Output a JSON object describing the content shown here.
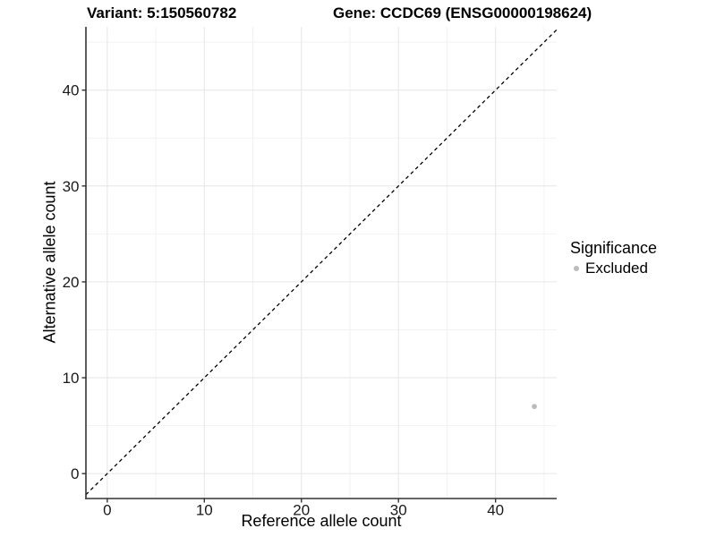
{
  "chart_data": {
    "type": "scatter",
    "title_left": "Variant: 5:150560782",
    "title_right": "Gene: CCDC69 (ENSG00000198624)",
    "xlabel": "Reference allele count",
    "ylabel": "Alternative allele count",
    "x_ticks": [
      0,
      10,
      20,
      30,
      40
    ],
    "y_ticks": [
      0,
      10,
      20,
      30,
      40
    ],
    "x_minor_ticks": [
      5,
      15,
      25,
      35,
      45
    ],
    "y_minor_ticks": [
      5,
      15,
      25,
      35,
      45
    ],
    "xlim": [
      -2.2,
      46.3
    ],
    "ylim": [
      -2.6,
      46.6
    ],
    "grid": "major and minor, light gray, on white panel",
    "identity_line": {
      "equation": "y = x",
      "style": "dashed",
      "color": "#000000"
    },
    "series": [
      {
        "name": "Excluded",
        "color": "#bcbcbc",
        "points": [
          {
            "x": 44,
            "y": 7
          }
        ]
      }
    ],
    "legend": {
      "title": "Significance",
      "position": "right",
      "entries": [
        {
          "label": "Excluded",
          "color": "#bcbcbc"
        }
      ]
    },
    "colors": {
      "background": "#ffffff",
      "axis": "#333333",
      "tick_label": "#1a1a1a",
      "grid_major": "#e6e6e6",
      "grid_minor": "#f2f2f2",
      "point": "#bcbcbc",
      "dashed_line": "#000000"
    }
  }
}
